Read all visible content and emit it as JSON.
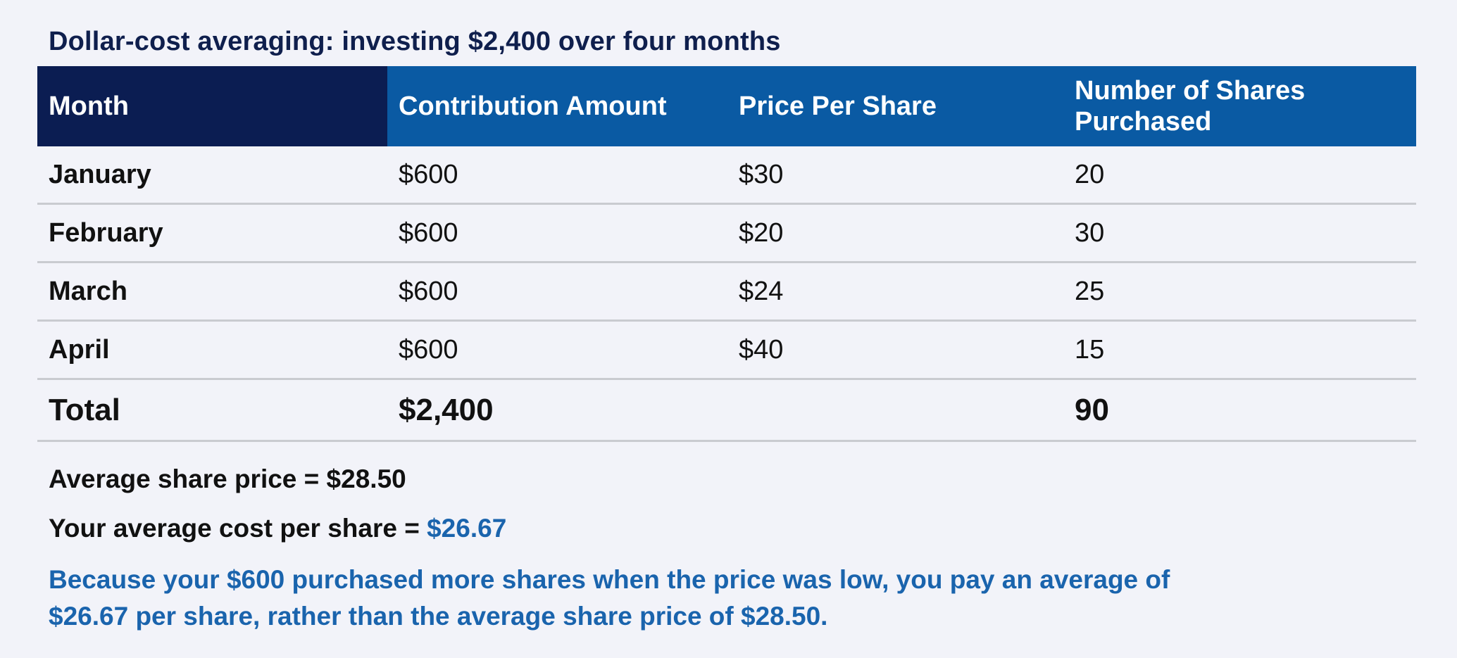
{
  "title": "Dollar-cost averaging: investing $2,400 over four months",
  "table": {
    "headers": {
      "month": "Month",
      "contribution": "Contribution Amount",
      "price": "Price Per Share",
      "shares_line1": "Number of Shares",
      "shares_line2": "Purchased"
    },
    "rows": [
      {
        "month": "January",
        "contribution": "$600",
        "price": "$30",
        "shares": "20"
      },
      {
        "month": "February",
        "contribution": "$600",
        "price": "$20",
        "shares": "30"
      },
      {
        "month": "March",
        "contribution": "$600",
        "price": "$24",
        "shares": "25"
      },
      {
        "month": "April",
        "contribution": "$600",
        "price": "$40",
        "shares": "15"
      }
    ],
    "total": {
      "label": "Total",
      "contribution": "$2,400",
      "price": "",
      "shares": "90"
    }
  },
  "notes": {
    "avg_price_text": "Average share price = $28.50",
    "avg_cost_label": "Your average cost per share = ",
    "avg_cost_value": "$26.67",
    "explanation_line1": "Because your $600 purchased more shares when the price was low, you pay an average of",
    "explanation_line2": "$26.67 per share, rather than the average share price of $28.50."
  },
  "colors": {
    "header_blue": "#0a5aa3",
    "header_navy": "#0b1d52",
    "accent_blue": "#1a64ad",
    "title_navy": "#0f1f4d",
    "background": "#f2f3f9"
  }
}
